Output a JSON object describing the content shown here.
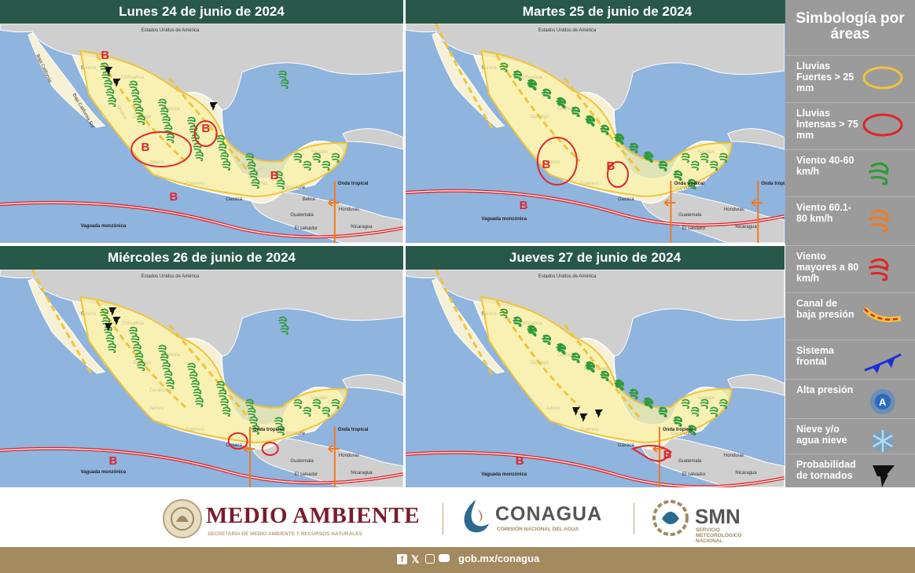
{
  "panels": [
    {
      "title": "Lunes 24 de junio de 2024"
    },
    {
      "title": "Martes 25 de junio de 2024"
    },
    {
      "title": "Miércoles 26 de junio de 2024"
    },
    {
      "title": "Jueves 27 de junio de 2024"
    }
  ],
  "map_labels": {
    "usa": "Estados Unidos de América",
    "sonora": "Sonora",
    "chihuahua": "Chihuahua",
    "coahuila": "Coahuila",
    "durango": "Durango",
    "sinaloa": "Sinaloa",
    "bcs": "Baja California Sur",
    "bc": "Baja California",
    "zacatecas": "Zacatecas",
    "jalisco": "Jalisco",
    "guerrero": "Guerrero",
    "oaxaca": "Oaxaca",
    "chiapas": "Chiapas",
    "veracruz": "Veracruz",
    "yucatan": "Yucatán",
    "campeche": "Campeche",
    "guatemala": "Guatemala",
    "belice": "Belice",
    "honduras": "Honduras",
    "nicaragua": "Nicaragua",
    "elsalvador": "El salvador",
    "nuevoleon": "Nuevo León",
    "quintana": "Quintana Roo",
    "vaguada": "Vaguada monzónica",
    "onda": "Onda tropical",
    "low": "B"
  },
  "legend": {
    "title": "Simbología por áreas",
    "items": [
      {
        "label": "Lluvias Fuertes > 25 mm",
        "icon": "yellow-ellipse-icon"
      },
      {
        "label": "Lluvias Intensas > 75 mm",
        "icon": "red-ellipse-icon"
      },
      {
        "label": "Viento 40-60 km/h",
        "icon": "green-wind-icon"
      },
      {
        "label": "Viento 60.1-80 km/h",
        "icon": "orange-wind-icon"
      },
      {
        "label": "Viento mayores a 80 km/h",
        "icon": "red-wind-icon"
      },
      {
        "label": "Canal de baja presión",
        "icon": "low-pressure-trough-icon"
      },
      {
        "label": "Sistema frontal",
        "icon": "cold-front-icon"
      },
      {
        "label": "Alta presión",
        "icon": "high-pressure-icon"
      },
      {
        "label": "Nieve y/o agua nieve",
        "icon": "snowflake-icon"
      },
      {
        "label": "Probabilidad de tornados",
        "icon": "tornado-icon"
      }
    ]
  },
  "footer": {
    "medio": "MEDIO AMBIENTE",
    "medio_sub": "SECRETARÍA DE MEDIO AMBIENTE Y RECURSOS NATURALES",
    "conagua": "CONAGUA",
    "conagua_sub": "COMISIÓN NACIONAL DEL AGUA",
    "smn": "SMN",
    "smn_sub1": "SERVICIO",
    "smn_sub2": "METEOROLÓGICO",
    "smn_sub3": "NACIONAL",
    "social": "gob.mx/conagua"
  },
  "colors": {
    "header": "#28584a",
    "sea": "#8fb4dd",
    "land_mx": "#f6f1d6",
    "land_other": "#cfcfcf",
    "yellow": "#f0c43a",
    "red": "#e0242a",
    "green": "#2f9a3a",
    "orange": "#f07a22",
    "legend_bg": "#9b9b9b",
    "brand": "#7b1c2e",
    "bar": "#a38a5f"
  }
}
